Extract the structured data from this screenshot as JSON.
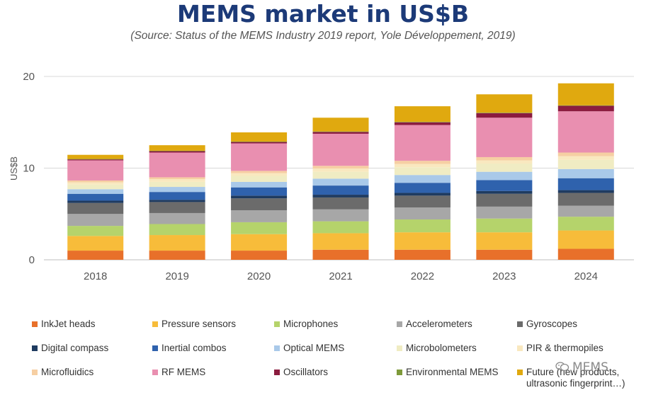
{
  "chart_data": {
    "type": "bar",
    "stacked": true,
    "title": "MEMS market in US$B",
    "subtitle": "(Source: Status of the MEMS Industry 2019 report, Yole Développement, 2019)",
    "xlabel": "",
    "ylabel": "US$B",
    "ylim": [
      0,
      20
    ],
    "yticks": [
      "0",
      "10",
      "20"
    ],
    "grid": true,
    "legend_position": "bottom",
    "categories": [
      "2018",
      "2019",
      "2020",
      "2021",
      "2022",
      "2023",
      "2024"
    ],
    "series": [
      {
        "name": "InkJet heads",
        "color": "#e8702a",
        "values": [
          1.0,
          1.0,
          1.0,
          1.1,
          1.1,
          1.1,
          1.2
        ]
      },
      {
        "name": "Pressure sensors",
        "color": "#f7bc3a",
        "values": [
          1.6,
          1.7,
          1.8,
          1.8,
          1.9,
          1.9,
          2.0
        ]
      },
      {
        "name": "Microphones",
        "color": "#b5d36b",
        "values": [
          1.1,
          1.2,
          1.3,
          1.3,
          1.4,
          1.5,
          1.5
        ]
      },
      {
        "name": "Accelerometers",
        "color": "#a7a7a7",
        "values": [
          1.3,
          1.2,
          1.3,
          1.3,
          1.3,
          1.3,
          1.2
        ]
      },
      {
        "name": "Gyroscopes",
        "color": "#6b6b6b",
        "values": [
          1.2,
          1.2,
          1.3,
          1.3,
          1.3,
          1.4,
          1.4
        ]
      },
      {
        "name": "Digital compass",
        "color": "#1f3b60",
        "values": [
          0.25,
          0.25,
          0.3,
          0.3,
          0.3,
          0.3,
          0.3
        ]
      },
      {
        "name": "Inertial combos",
        "color": "#2f62ad",
        "values": [
          0.75,
          0.85,
          0.9,
          1.0,
          1.1,
          1.2,
          1.3
        ]
      },
      {
        "name": "Optical MEMS",
        "color": "#a9c9e9",
        "values": [
          0.5,
          0.55,
          0.6,
          0.75,
          0.85,
          0.9,
          1.0
        ]
      },
      {
        "name": "Microbolometers",
        "color": "#f0ecc3",
        "values": [
          0.5,
          0.55,
          0.65,
          0.75,
          0.85,
          0.9,
          1.0
        ]
      },
      {
        "name": "PIR & thermopiles",
        "color": "#f9e8bf",
        "values": [
          0.25,
          0.3,
          0.3,
          0.35,
          0.35,
          0.35,
          0.4
        ]
      },
      {
        "name": "Microfluidics",
        "color": "#f6cfa3",
        "values": [
          0.2,
          0.2,
          0.25,
          0.3,
          0.35,
          0.35,
          0.4
        ]
      },
      {
        "name": "RF MEMS",
        "color": "#e98fb0",
        "values": [
          2.2,
          2.7,
          3.0,
          3.5,
          3.9,
          4.3,
          4.5
        ]
      },
      {
        "name": "Oscillators",
        "color": "#8b1c3f",
        "values": [
          0.1,
          0.15,
          0.15,
          0.2,
          0.3,
          0.5,
          0.6
        ]
      },
      {
        "name": "Environmental MEMS",
        "color": "#7e9a3a",
        "values": [
          0.05,
          0.05,
          0.05,
          0.05,
          0.05,
          0.05,
          0.05
        ]
      },
      {
        "name": "Future (new products, ultrasonic fingerprint…)",
        "color": "#e0a90f",
        "values": [
          0.45,
          0.6,
          1.0,
          1.5,
          1.7,
          2.0,
          2.4
        ]
      }
    ]
  },
  "legend_labels": [
    {
      "line1": "InkJet heads"
    },
    {
      "line1": "Pressure sensors"
    },
    {
      "line1": "Microphones"
    },
    {
      "line1": "Accelerometers"
    },
    {
      "line1": "Gyroscopes"
    },
    {
      "line1": "Digital compass"
    },
    {
      "line1": "Inertial combos"
    },
    {
      "line1": "Optical MEMS"
    },
    {
      "line1": "Microbolometers"
    },
    {
      "line1": "PIR & thermopiles"
    },
    {
      "line1": "Microfluidics"
    },
    {
      "line1": "RF MEMS"
    },
    {
      "line1": "Oscillators"
    },
    {
      "line1": "Environmental MEMS"
    },
    {
      "line1": "Future (new products,",
      "line2": "ultrasonic fingerprint…)"
    }
  ],
  "watermark": {
    "text": "MEMS",
    "icon": "wechat-icon"
  }
}
